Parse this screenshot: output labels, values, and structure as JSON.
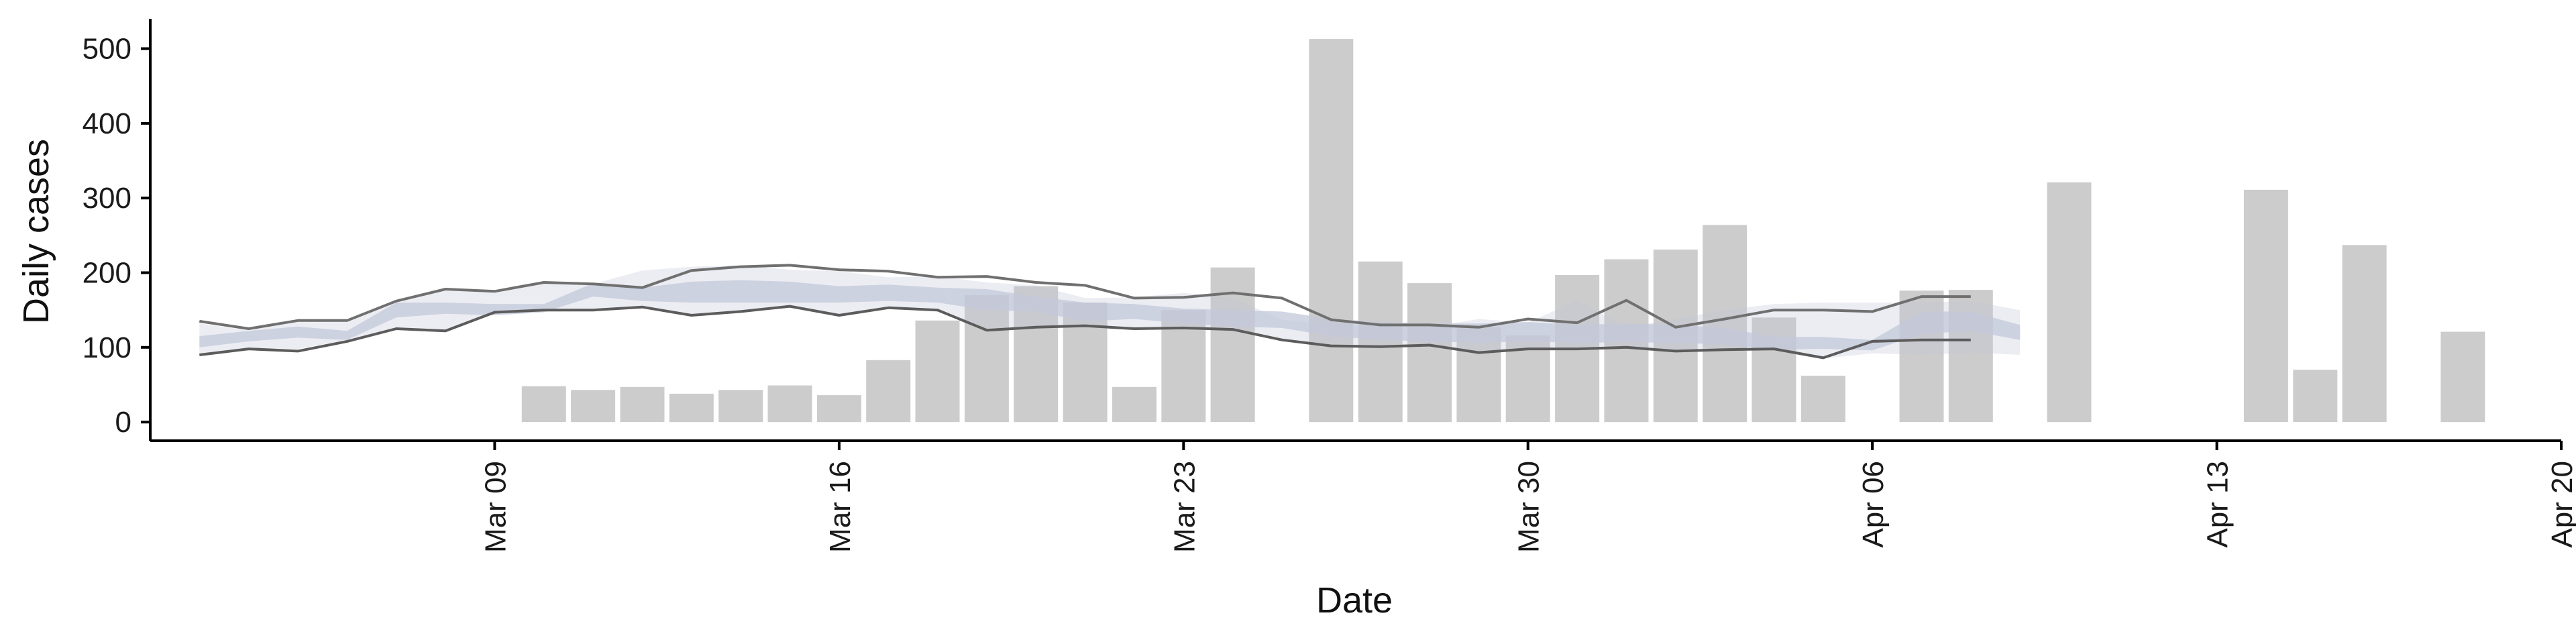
{
  "chart_data": {
    "type": "bar",
    "title": "",
    "xlabel": "Date",
    "ylabel": "Daily cases",
    "x_ticks": [
      "Mar 09",
      "Mar 16",
      "Mar 23",
      "Mar 30",
      "Apr 06",
      "Apr 13",
      "Apr 20"
    ],
    "y_ticks": [
      "0",
      "100",
      "200",
      "300",
      "400",
      "500"
    ],
    "xlim": [
      "2020-03-02",
      "2020-04-20"
    ],
    "ylim": [
      -25,
      540
    ],
    "grid": false,
    "legend": "none",
    "bar_color": "#cccccc",
    "bars": [
      {
        "x": "2020-03-10",
        "y": 48
      },
      {
        "x": "2020-03-11",
        "y": 43
      },
      {
        "x": "2020-03-12",
        "y": 47
      },
      {
        "x": "2020-03-13",
        "y": 38
      },
      {
        "x": "2020-03-14",
        "y": 43
      },
      {
        "x": "2020-03-15",
        "y": 49
      },
      {
        "x": "2020-03-16",
        "y": 36
      },
      {
        "x": "2020-03-17",
        "y": 83
      },
      {
        "x": "2020-03-18",
        "y": 136
      },
      {
        "x": "2020-03-19",
        "y": 170
      },
      {
        "x": "2020-03-20",
        "y": 182
      },
      {
        "x": "2020-03-21",
        "y": 160
      },
      {
        "x": "2020-03-22",
        "y": 47
      },
      {
        "x": "2020-03-23",
        "y": 150
      },
      {
        "x": "2020-03-24",
        "y": 207
      },
      {
        "x": "2020-03-26",
        "y": 513
      },
      {
        "x": "2020-03-27",
        "y": 215
      },
      {
        "x": "2020-03-28",
        "y": 186
      },
      {
        "x": "2020-03-29",
        "y": 127
      },
      {
        "x": "2020-03-30",
        "y": 116
      },
      {
        "x": "2020-03-31",
        "y": 197
      },
      {
        "x": "2020-04-01",
        "y": 218
      },
      {
        "x": "2020-04-02",
        "y": 231
      },
      {
        "x": "2020-04-03",
        "y": 264
      },
      {
        "x": "2020-04-04",
        "y": 140
      },
      {
        "x": "2020-04-05",
        "y": 62
      },
      {
        "x": "2020-04-07",
        "y": 176
      },
      {
        "x": "2020-04-08",
        "y": 177
      },
      {
        "x": "2020-04-10",
        "y": 321
      },
      {
        "x": "2020-04-14",
        "y": 311
      },
      {
        "x": "2020-04-15",
        "y": 70
      },
      {
        "x": "2020-04-16",
        "y": 237
      },
      {
        "x": "2020-04-18",
        "y": 121
      }
    ],
    "band_color": "#c3c8d9",
    "band_outer": {
      "x": [
        "2020-03-03",
        "2020-03-04",
        "2020-03-05",
        "2020-03-06",
        "2020-03-07",
        "2020-03-08",
        "2020-03-09",
        "2020-03-10",
        "2020-03-11",
        "2020-03-12",
        "2020-03-13",
        "2020-03-14",
        "2020-03-15",
        "2020-03-16",
        "2020-03-17",
        "2020-03-18",
        "2020-03-19",
        "2020-03-20",
        "2020-03-21",
        "2020-03-22",
        "2020-03-23",
        "2020-03-24",
        "2020-03-25",
        "2020-03-26",
        "2020-03-27",
        "2020-03-28",
        "2020-03-29",
        "2020-03-30",
        "2020-03-31",
        "2020-04-01",
        "2020-04-02",
        "2020-04-03",
        "2020-04-04",
        "2020-04-05",
        "2020-04-06",
        "2020-04-07",
        "2020-04-08",
        "2020-04-09"
      ],
      "lower": [
        92,
        99,
        98,
        110,
        125,
        122,
        147,
        150,
        150,
        154,
        143,
        148,
        155,
        143,
        153,
        152,
        123,
        127,
        129,
        125,
        126,
        124,
        110,
        102,
        101,
        103,
        93,
        98,
        98,
        100,
        94,
        96,
        98,
        85,
        92,
        90,
        93,
        90
      ],
      "upper": [
        132,
        123,
        137,
        137,
        162,
        178,
        175,
        187,
        185,
        203,
        208,
        210,
        204,
        202,
        194,
        195,
        187,
        183,
        166,
        167,
        173,
        166,
        137,
        130,
        130,
        127,
        138,
        133,
        163,
        127,
        138,
        150,
        158,
        160,
        160,
        160,
        162,
        150
      ]
    },
    "band_inner": {
      "x": [
        "2020-03-03",
        "2020-03-04",
        "2020-03-05",
        "2020-03-06",
        "2020-03-07",
        "2020-03-08",
        "2020-03-09",
        "2020-03-10",
        "2020-03-11",
        "2020-03-12",
        "2020-03-13",
        "2020-03-14",
        "2020-03-15",
        "2020-03-16",
        "2020-03-17",
        "2020-03-18",
        "2020-03-19",
        "2020-03-20",
        "2020-03-21",
        "2020-03-22",
        "2020-03-23",
        "2020-03-24",
        "2020-03-25",
        "2020-03-26",
        "2020-03-27",
        "2020-03-28",
        "2020-03-29",
        "2020-03-30",
        "2020-03-31",
        "2020-04-01",
        "2020-04-02",
        "2020-04-03",
        "2020-04-04",
        "2020-04-05",
        "2020-04-06",
        "2020-04-07",
        "2020-04-08",
        "2020-04-09"
      ],
      "lower": [
        100,
        108,
        113,
        110,
        140,
        145,
        143,
        147,
        168,
        162,
        160,
        160,
        160,
        160,
        162,
        160,
        150,
        148,
        135,
        138,
        132,
        128,
        126,
        115,
        110,
        108,
        106,
        108,
        106,
        107,
        106,
        104,
        97,
        98,
        96,
        118,
        122,
        110
      ],
      "upper": [
        115,
        122,
        128,
        122,
        160,
        160,
        158,
        158,
        186,
        180,
        188,
        190,
        188,
        182,
        184,
        180,
        178,
        168,
        160,
        158,
        152,
        150,
        148,
        138,
        134,
        132,
        132,
        134,
        130,
        132,
        130,
        126,
        114,
        114,
        110,
        148,
        148,
        130
      ]
    },
    "lines": [
      {
        "color": "#707070",
        "x": [
          "2020-03-03",
          "2020-03-04",
          "2020-03-05",
          "2020-03-06",
          "2020-03-07",
          "2020-03-08",
          "2020-03-09",
          "2020-03-10",
          "2020-03-11",
          "2020-03-12",
          "2020-03-13",
          "2020-03-14",
          "2020-03-15",
          "2020-03-16",
          "2020-03-17",
          "2020-03-18",
          "2020-03-19",
          "2020-03-20",
          "2020-03-21",
          "2020-03-22",
          "2020-03-23",
          "2020-03-24",
          "2020-03-25",
          "2020-03-26",
          "2020-03-27",
          "2020-03-28",
          "2020-03-29",
          "2020-03-30",
          "2020-03-31",
          "2020-04-01",
          "2020-04-02",
          "2020-04-03",
          "2020-04-04",
          "2020-04-05",
          "2020-04-06",
          "2020-04-07",
          "2020-04-08"
        ],
        "y": [
          135,
          125,
          136,
          136,
          162,
          178,
          175,
          187,
          185,
          180,
          203,
          208,
          210,
          204,
          202,
          194,
          195,
          187,
          183,
          166,
          167,
          173,
          166,
          137,
          130,
          130,
          127,
          138,
          133,
          163,
          127,
          138,
          150,
          150,
          148,
          168,
          168
        ]
      },
      {
        "color": "#5c5c5c",
        "x": [
          "2020-03-03",
          "2020-03-04",
          "2020-03-05",
          "2020-03-06",
          "2020-03-07",
          "2020-03-08",
          "2020-03-09",
          "2020-03-10",
          "2020-03-11",
          "2020-03-12",
          "2020-03-13",
          "2020-03-14",
          "2020-03-15",
          "2020-03-16",
          "2020-03-17",
          "2020-03-18",
          "2020-03-19",
          "2020-03-20",
          "2020-03-21",
          "2020-03-22",
          "2020-03-23",
          "2020-03-24",
          "2020-03-25",
          "2020-03-26",
          "2020-03-27",
          "2020-03-28",
          "2020-03-29",
          "2020-03-30",
          "2020-03-31",
          "2020-04-01",
          "2020-04-02",
          "2020-04-03",
          "2020-04-04",
          "2020-04-05",
          "2020-04-06",
          "2020-04-07",
          "2020-04-08"
        ],
        "y": [
          90,
          98,
          95,
          108,
          125,
          122,
          147,
          150,
          150,
          154,
          143,
          148,
          155,
          143,
          153,
          150,
          123,
          127,
          129,
          125,
          126,
          124,
          110,
          102,
          101,
          103,
          93,
          98,
          98,
          100,
          95,
          97,
          98,
          86,
          108,
          110,
          110
        ]
      }
    ]
  }
}
